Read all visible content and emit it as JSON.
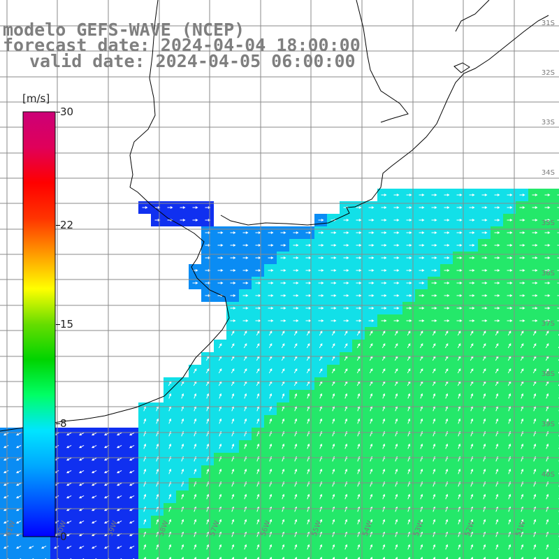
{
  "title": {
    "line1": "modelo GEFS-WAVE (NCEP)",
    "line2": "forecast date: 2024-04-04 18:00:00",
    "line3": "valid date: 2024-04-05 06:00:00"
  },
  "colorbar": {
    "unit": "[m/s]",
    "min": 0,
    "max": 30,
    "ticks": [
      "30",
      "22",
      "15",
      "8",
      "0"
    ],
    "tick_values": [
      30,
      22,
      15,
      8,
      0
    ],
    "colors": [
      "#0000ff",
      "#0055ff",
      "#00a8ff",
      "#00e5ff",
      "#00ff66",
      "#00d400",
      "#66dd00",
      "#ffff00",
      "#ff9900",
      "#ff3300",
      "#ff0000",
      "#e0005a",
      "#cc0077"
    ]
  },
  "map": {
    "lat_labels": [
      "31S",
      "32S",
      "33S",
      "34S",
      "35S",
      "36S",
      "37S",
      "38S",
      "39S",
      "40S"
    ],
    "lon_labels": [
      "61W",
      "60W",
      "59W",
      "58W",
      "57W",
      "56W",
      "55W",
      "54W",
      "53W",
      "52W",
      "51W"
    ],
    "field_colors": {
      "slow": "#1030f0",
      "medium": "#0a8cf4",
      "fast": "#12e0e8",
      "fastest": "#24e86a",
      "land": "#ffffff",
      "coast": "#000000",
      "grid": "#8a8a8a",
      "arrows": "#ffffff"
    }
  }
}
